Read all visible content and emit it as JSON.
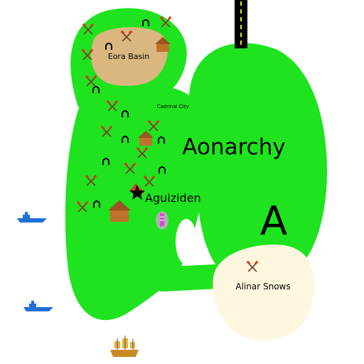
{
  "map": {
    "country_name": "Aonarchy",
    "country_letter": "A",
    "capital": "Aguiziden",
    "city": "Cadrinal City",
    "regions": {
      "basin": "Eora Basin",
      "snows": "Alinar Snows"
    },
    "colors": {
      "land": "#1ee31e",
      "basin": "#d9b77f",
      "snows": "#fdf7e0",
      "road": "#000000",
      "road_line": "#f2e21a",
      "ship": "#1e6fd6",
      "galleon": "#d8a236",
      "house": "#c0712c",
      "mine": "#d33a1d",
      "tower": "#d64bd6"
    },
    "icons": {
      "capital": "star-icon",
      "mine": "crossed-hammers-icon",
      "cave": "arch-icon",
      "house": "house-icon",
      "tower": "watchtower-icon",
      "ship": "steamship-icon",
      "galleon": "galleon-icon",
      "road": "road-icon"
    }
  }
}
